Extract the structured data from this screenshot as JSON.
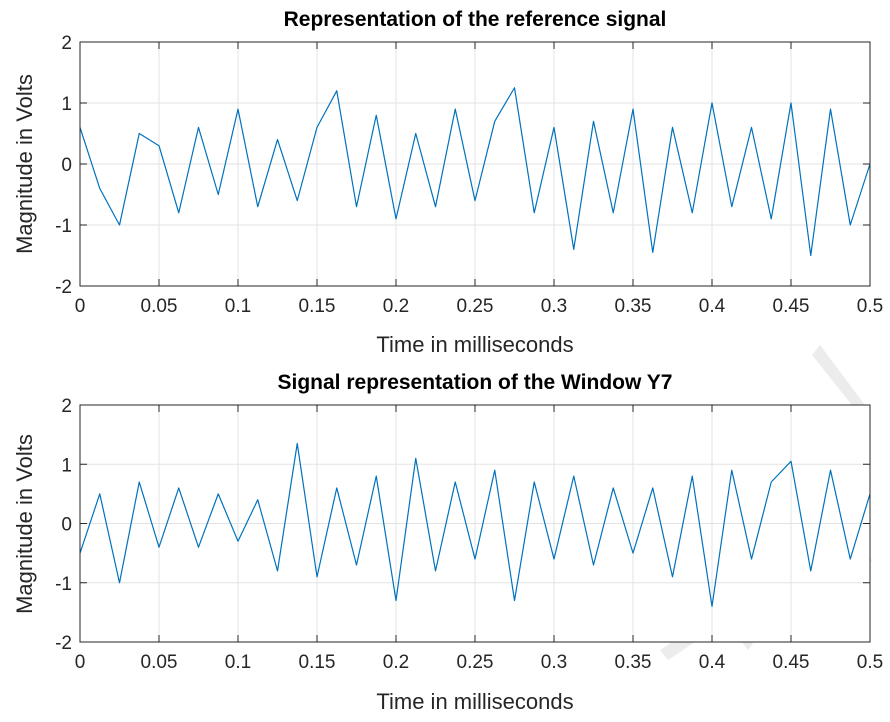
{
  "chart_data": [
    {
      "type": "line",
      "title": "Representation of the reference signal",
      "xlabel": "Time in milliseconds",
      "ylabel": "Magnitude in Volts",
      "xlim": [
        0,
        0.5
      ],
      "ylim": [
        -2,
        2
      ],
      "xticks": [
        "0",
        "0.05",
        "0.1",
        "0.15",
        "0.2",
        "0.25",
        "0.3",
        "0.35",
        "0.4",
        "0.45",
        "0.5"
      ],
      "yticks": [
        "-2",
        "-1",
        "0",
        "1",
        "2"
      ],
      "grid": true,
      "series_color": "#0072bd",
      "x": [
        0,
        0.0125,
        0.025,
        0.0375,
        0.05,
        0.0625,
        0.075,
        0.0875,
        0.1,
        0.1125,
        0.125,
        0.1375,
        0.15,
        0.1625,
        0.175,
        0.1875,
        0.2,
        0.2125,
        0.225,
        0.2375,
        0.25,
        0.2625,
        0.275,
        0.2875,
        0.3,
        0.3125,
        0.325,
        0.3375,
        0.35,
        0.3625,
        0.375,
        0.3875,
        0.4,
        0.4125,
        0.425,
        0.4375,
        0.45,
        0.4625,
        0.475,
        0.4875,
        0.5
      ],
      "y": [
        0.6,
        -0.4,
        -1.0,
        0.5,
        0.3,
        -0.8,
        0.6,
        -0.5,
        0.9,
        -0.7,
        0.4,
        -0.6,
        0.6,
        1.2,
        -0.7,
        0.8,
        -0.9,
        0.5,
        -0.7,
        0.9,
        -0.6,
        0.7,
        1.25,
        -0.8,
        0.6,
        -1.4,
        0.7,
        -0.8,
        0.9,
        -1.45,
        0.6,
        -0.8,
        1.0,
        -0.7,
        0.6,
        -0.9,
        1.0,
        -1.5,
        0.9,
        -1.0,
        0.0
      ]
    },
    {
      "type": "line",
      "title": "Signal representation of the Window Y7",
      "xlabel": "Time in milliseconds",
      "ylabel": "Magnitude in Volts",
      "xlim": [
        0,
        0.5
      ],
      "ylim": [
        -2,
        2
      ],
      "xticks": [
        "0",
        "0.05",
        "0.1",
        "0.15",
        "0.2",
        "0.25",
        "0.3",
        "0.35",
        "0.4",
        "0.45",
        "0.5"
      ],
      "yticks": [
        "-2",
        "-1",
        "0",
        "1",
        "2"
      ],
      "grid": true,
      "series_color": "#0072bd",
      "x": [
        0,
        0.0125,
        0.025,
        0.0375,
        0.05,
        0.0625,
        0.075,
        0.0875,
        0.1,
        0.1125,
        0.125,
        0.1375,
        0.15,
        0.1625,
        0.175,
        0.1875,
        0.2,
        0.2125,
        0.225,
        0.2375,
        0.25,
        0.2625,
        0.275,
        0.2875,
        0.3,
        0.3125,
        0.325,
        0.3375,
        0.35,
        0.3625,
        0.375,
        0.3875,
        0.4,
        0.4125,
        0.425,
        0.4375,
        0.45,
        0.4625,
        0.475,
        0.4875,
        0.5
      ],
      "y": [
        -0.5,
        0.5,
        -1.0,
        0.7,
        -0.4,
        0.6,
        -0.4,
        0.5,
        -0.3,
        0.4,
        -0.8,
        1.35,
        -0.9,
        0.6,
        -0.7,
        0.8,
        -1.3,
        1.1,
        -0.8,
        0.7,
        -0.6,
        0.9,
        -1.3,
        0.7,
        -0.6,
        0.8,
        -0.7,
        0.6,
        -0.5,
        0.6,
        -0.9,
        0.8,
        -1.4,
        0.9,
        -0.6,
        0.7,
        1.05,
        -0.8,
        0.9,
        -0.6,
        0.5
      ]
    }
  ],
  "watermark_color": "#e6e6e6"
}
